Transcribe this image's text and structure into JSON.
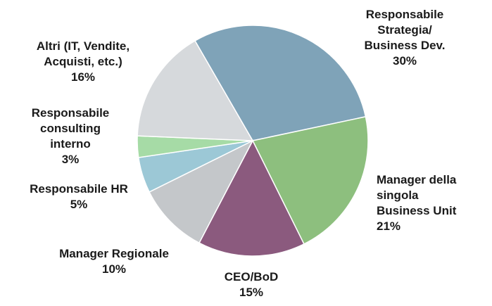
{
  "chart_data": {
    "type": "pie",
    "categories": [
      "Responsabile\nStrategia/\nBusiness Dev.",
      "Manager della\nsingola\nBusiness Unit",
      "CEO/BoD",
      "Manager Regionale",
      "Responsabile  HR",
      "Responsabile\nconsulting\ninterno",
      "Altri (IT, Vendite,\nAcquisti, etc.)"
    ],
    "values": [
      30,
      21,
      15,
      10,
      5,
      3,
      16
    ],
    "value_labels": [
      "30%",
      "21%",
      "15%",
      "10%",
      "5%",
      "3%",
      "16%"
    ],
    "colors": [
      "#7fa3b8",
      "#8dbf7e",
      "#8b5a7e",
      "#c4c7ca",
      "#9cc8d6",
      "#a6dba6",
      "#d6d9dc"
    ]
  }
}
